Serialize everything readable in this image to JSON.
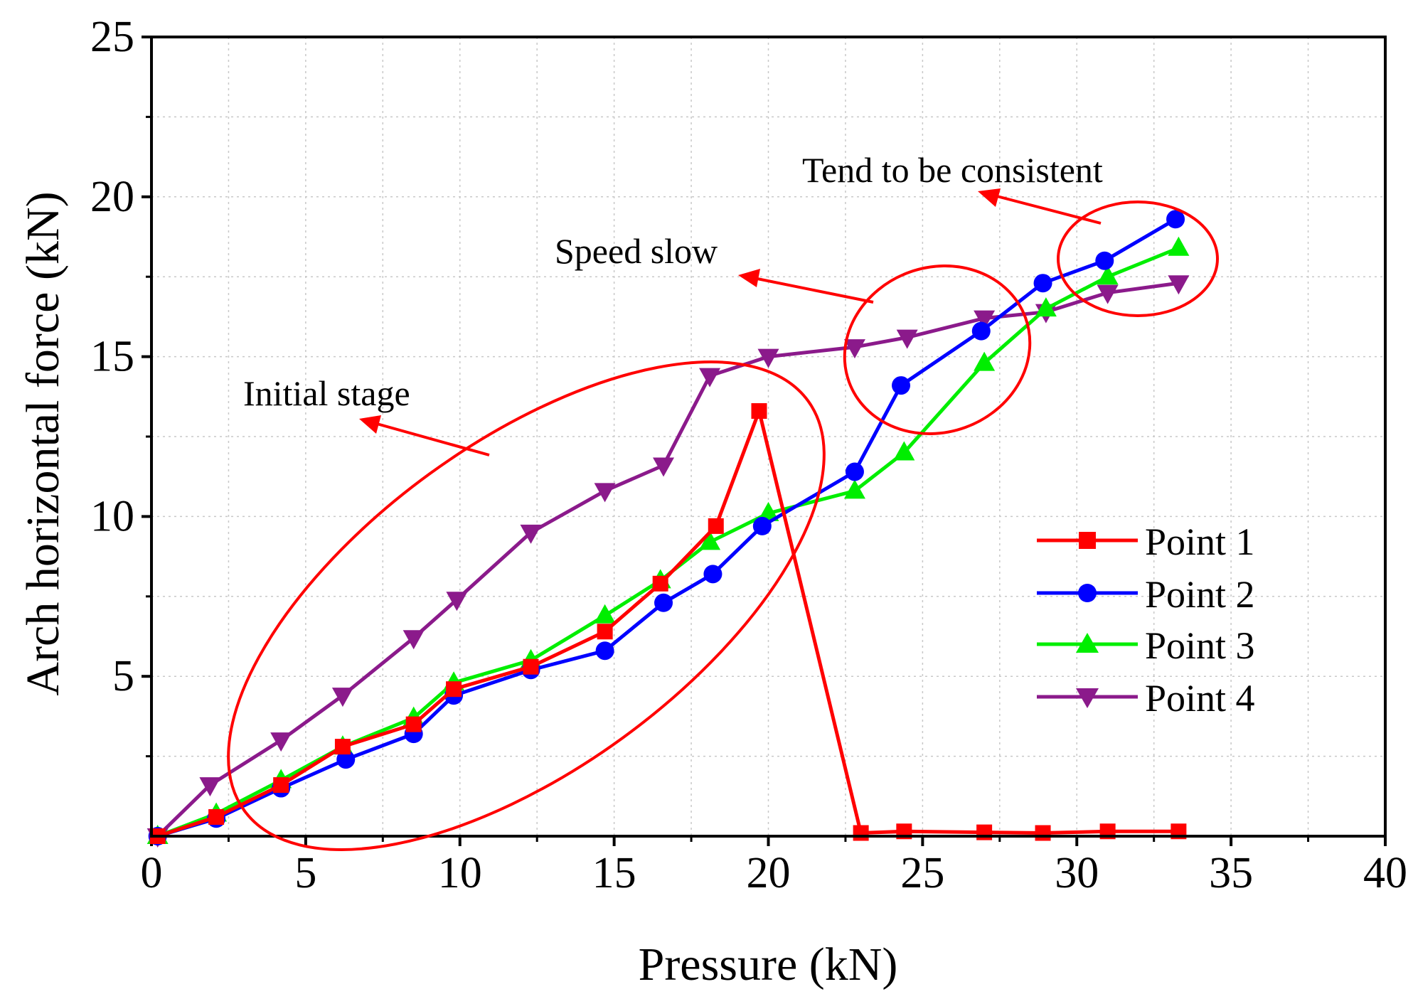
{
  "chart_data": {
    "type": "line",
    "title": "",
    "xlabel": "Pressure (kN)",
    "ylabel": "Arch horizontal force  (kN)",
    "xlim": [
      0,
      40
    ],
    "ylim": [
      0,
      25
    ],
    "xticks": [
      0,
      5,
      10,
      15,
      20,
      25,
      30,
      35,
      40
    ],
    "yticks": [
      5,
      10,
      15,
      20,
      25
    ],
    "minor_gridlines": true,
    "legend_position": "bottom-right",
    "series": [
      {
        "name": "Point 1",
        "color": "#ff0000",
        "marker": "square",
        "points": [
          [
            0.2,
            0
          ],
          [
            2.1,
            0.6
          ],
          [
            4.2,
            1.6
          ],
          [
            6.2,
            2.8
          ],
          [
            8.5,
            3.5
          ],
          [
            9.8,
            4.6
          ],
          [
            12.3,
            5.3
          ],
          [
            14.7,
            6.4
          ],
          [
            16.5,
            7.9
          ],
          [
            18.3,
            9.7
          ],
          [
            19.7,
            13.3
          ],
          [
            23.0,
            0.1
          ],
          [
            24.4,
            0.15
          ],
          [
            27.0,
            0.12
          ],
          [
            28.9,
            0.1
          ],
          [
            31.0,
            0.15
          ],
          [
            33.3,
            0.15
          ]
        ]
      },
      {
        "name": "Point 2",
        "color": "#0000ff",
        "marker": "circle",
        "points": [
          [
            0.2,
            0
          ],
          [
            2.1,
            0.55
          ],
          [
            4.2,
            1.5
          ],
          [
            6.3,
            2.4
          ],
          [
            8.5,
            3.2
          ],
          [
            9.8,
            4.4
          ],
          [
            12.3,
            5.2
          ],
          [
            14.7,
            5.8
          ],
          [
            16.6,
            7.3
          ],
          [
            18.2,
            8.2
          ],
          [
            19.8,
            9.7
          ],
          [
            22.8,
            11.4
          ],
          [
            24.3,
            14.1
          ],
          [
            26.9,
            15.8
          ],
          [
            28.9,
            17.3
          ],
          [
            30.9,
            18.0
          ],
          [
            33.2,
            19.3
          ]
        ]
      },
      {
        "name": "Point 3",
        "color": "#00ee00",
        "marker": "triangle-up",
        "points": [
          [
            0.2,
            0
          ],
          [
            2.1,
            0.7
          ],
          [
            4.2,
            1.75
          ],
          [
            6.2,
            2.8
          ],
          [
            8.5,
            3.7
          ],
          [
            9.8,
            4.8
          ],
          [
            12.3,
            5.5
          ],
          [
            14.7,
            6.9
          ],
          [
            16.5,
            8.0
          ],
          [
            18.1,
            9.2
          ],
          [
            20.0,
            10.1
          ],
          [
            22.8,
            10.8
          ],
          [
            24.4,
            12.0
          ],
          [
            27.0,
            14.8
          ],
          [
            29.0,
            16.5
          ],
          [
            31.0,
            17.5
          ],
          [
            33.3,
            18.4
          ]
        ]
      },
      {
        "name": "Point 4",
        "color": "#8b1a8b",
        "marker": "triangle-down",
        "points": [
          [
            0.2,
            0
          ],
          [
            1.9,
            1.6
          ],
          [
            4.2,
            3.0
          ],
          [
            6.2,
            4.4
          ],
          [
            8.5,
            6.2
          ],
          [
            9.9,
            7.4
          ],
          [
            12.3,
            9.5
          ],
          [
            14.7,
            10.8
          ],
          [
            16.6,
            11.6
          ],
          [
            18.1,
            14.4
          ],
          [
            20.0,
            15.0
          ],
          [
            22.8,
            15.3
          ],
          [
            24.5,
            15.6
          ],
          [
            27.0,
            16.2
          ],
          [
            29.0,
            16.4
          ],
          [
            31.0,
            17.0
          ],
          [
            33.3,
            17.3
          ]
        ]
      }
    ],
    "annotations": [
      {
        "text": "Initial stage",
        "color": "#ff0000"
      },
      {
        "text": "Speed slow",
        "color": "#ff0000"
      },
      {
        "text": "Tend to be consistent",
        "color": "#ff0000"
      }
    ]
  }
}
